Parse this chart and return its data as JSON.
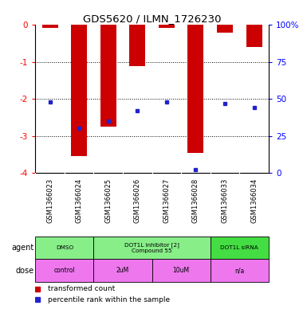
{
  "title": "GDS5620 / ILMN_1726230",
  "samples": [
    "GSM1366023",
    "GSM1366024",
    "GSM1366025",
    "GSM1366026",
    "GSM1366027",
    "GSM1366028",
    "GSM1366033",
    "GSM1366034"
  ],
  "bar_values": [
    -0.08,
    -3.55,
    -2.75,
    -1.1,
    -0.07,
    -3.45,
    -0.2,
    -0.6
  ],
  "percentile_values": [
    48,
    30,
    35,
    42,
    48,
    2,
    47,
    44
  ],
  "ylim": [
    -4,
    0
  ],
  "yticks": [
    0,
    -1,
    -2,
    -3,
    -4
  ],
  "y2_labels": [
    "100%",
    "75",
    "50",
    "25",
    "0"
  ],
  "bar_color": "#cc0000",
  "dot_color": "#2222cc",
  "agent_groups": [
    {
      "label": "DMSO",
      "start": 0,
      "end": 2,
      "color": "#88ee88"
    },
    {
      "label": "DOT1L inhibitor [2]\nCompound 55",
      "start": 2,
      "end": 6,
      "color": "#88ee88"
    },
    {
      "label": "DOT1L siRNA",
      "start": 6,
      "end": 8,
      "color": "#44dd44"
    }
  ],
  "dose_groups": [
    {
      "label": "control",
      "start": 0,
      "end": 2,
      "color": "#ee77ee"
    },
    {
      "label": "2uM",
      "start": 2,
      "end": 4,
      "color": "#ee77ee"
    },
    {
      "label": "10uM",
      "start": 4,
      "end": 6,
      "color": "#ee77ee"
    },
    {
      "label": "n/a",
      "start": 6,
      "end": 8,
      "color": "#ee77ee"
    }
  ],
  "legend_items": [
    {
      "color": "#cc0000",
      "label": "transformed count"
    },
    {
      "color": "#2222cc",
      "label": "percentile rank within the sample"
    }
  ],
  "sample_box_color": "#cccccc",
  "bar_width": 0.55
}
